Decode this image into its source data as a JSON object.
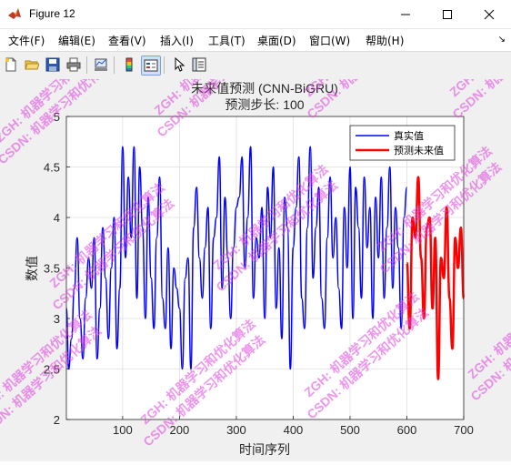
{
  "window": {
    "title": "Figure 12",
    "minimize_icon": "minimize-icon",
    "maximize_icon": "maximize-icon",
    "close_icon": "close-icon"
  },
  "menubar": {
    "items": [
      "文件(F)",
      "编辑(E)",
      "查看(V)",
      "插入(I)",
      "工具(T)",
      "桌面(D)",
      "窗口(W)",
      "帮助(H)"
    ],
    "overflow_arrow": "↘"
  },
  "toolbar": {
    "icons": [
      "new-figure-icon",
      "open-file-icon",
      "save-icon",
      "print-icon",
      "link-plot-icon",
      "insert-colorbar-icon",
      "insert-legend-icon",
      "pointer-icon",
      "property-inspector-icon"
    ]
  },
  "watermark": {
    "line1": "ZGH: 机器学习和优化算法",
    "line2": "CSDN: 机器学习和优化算法"
  },
  "colors": {
    "true_series": "#0000ff",
    "pred_series": "#ff0000",
    "watermark": "#e040e0"
  },
  "chart_data": {
    "type": "line",
    "title": "未来值预测 (CNN-BiGRU)",
    "subtitle": "预测步长: 100",
    "xlabel": "时间序列",
    "ylabel": "数值",
    "xlim": [
      1,
      700
    ],
    "ylim": [
      2,
      5
    ],
    "xticks": [
      100,
      200,
      300,
      400,
      500,
      600,
      700
    ],
    "yticks": [
      2,
      2.5,
      3,
      3.5,
      4,
      4.5,
      5
    ],
    "grid": true,
    "legend_position": "top-right",
    "series": [
      {
        "name": "真实值",
        "color": "#0000ff",
        "x": [
          1,
          5,
          10,
          15,
          20,
          25,
          30,
          35,
          40,
          45,
          50,
          55,
          60,
          65,
          70,
          75,
          80,
          85,
          90,
          95,
          100,
          105,
          110,
          115,
          120,
          125,
          130,
          135,
          140,
          145,
          150,
          155,
          160,
          165,
          170,
          175,
          180,
          185,
          190,
          195,
          200,
          205,
          210,
          215,
          220,
          225,
          230,
          235,
          240,
          245,
          250,
          255,
          260,
          265,
          270,
          275,
          280,
          285,
          290,
          295,
          300,
          305,
          310,
          315,
          320,
          325,
          330,
          335,
          340,
          345,
          350,
          355,
          360,
          365,
          370,
          375,
          380,
          385,
          390,
          395,
          400,
          405,
          410,
          415,
          420,
          425,
          430,
          435,
          440,
          445,
          450,
          455,
          460,
          465,
          470,
          475,
          480,
          485,
          490,
          495,
          500,
          505,
          510,
          515,
          520,
          525,
          530,
          535,
          540,
          545,
          550,
          555,
          560,
          565,
          570,
          575,
          580,
          585,
          590,
          595,
          600
        ],
        "y": [
          3.1,
          2.5,
          2.8,
          3.3,
          3.8,
          3.0,
          2.6,
          3.2,
          3.6,
          3.3,
          3.8,
          2.6,
          3.1,
          3.9,
          3.4,
          2.8,
          3.5,
          4.0,
          2.7,
          3.3,
          4.7,
          3.6,
          4.4,
          3.8,
          4.7,
          3.2,
          4.5,
          3.9,
          3.0,
          4.2,
          3.4,
          2.9,
          3.8,
          4.4,
          3.2,
          2.9,
          3.7,
          2.7,
          3.5,
          3.3,
          3.1,
          2.5,
          3.4,
          3.6,
          2.5,
          3.9,
          4.3,
          3.6,
          3.2,
          3.7,
          4.1,
          2.9,
          3.8,
          4.0,
          4.6,
          3.3,
          4.2,
          3.6,
          3.0,
          3.7,
          4.1,
          4.2,
          4.6,
          3.5,
          4.0,
          4.7,
          3.2,
          3.8,
          3.6,
          4.1,
          3.0,
          4.3,
          3.8,
          4.5,
          3.1,
          3.7,
          2.8,
          4.2,
          3.9,
          2.5,
          3.7,
          4.1,
          4.6,
          3.2,
          2.9,
          3.9,
          4.7,
          3.4,
          3.9,
          4.3,
          3.2,
          2.9,
          3.8,
          4.4,
          3.6,
          4.0,
          3.3,
          2.9,
          4.1,
          3.5,
          4.5,
          3.0,
          4.3,
          3.9,
          3.2,
          4.4,
          3.7,
          4.1,
          3.0,
          4.2,
          3.6,
          4.4,
          3.2,
          3.9,
          4.5,
          3.3,
          4.1,
          3.7,
          2.9,
          4.0,
          4.3
        ]
      },
      {
        "name": "预测未来值",
        "color": "#ff0000",
        "x": [
          600,
          605,
          610,
          615,
          620,
          625,
          630,
          635,
          640,
          645,
          650,
          655,
          660,
          665,
          670,
          675,
          680,
          685,
          690,
          695,
          700
        ],
        "y": [
          3.55,
          2.9,
          4.0,
          3.8,
          4.4,
          3.6,
          3.0,
          3.9,
          4.0,
          3.1,
          3.8,
          2.4,
          3.6,
          3.4,
          4.1,
          3.2,
          2.7,
          3.8,
          3.5,
          3.9,
          3.2
        ]
      }
    ]
  }
}
